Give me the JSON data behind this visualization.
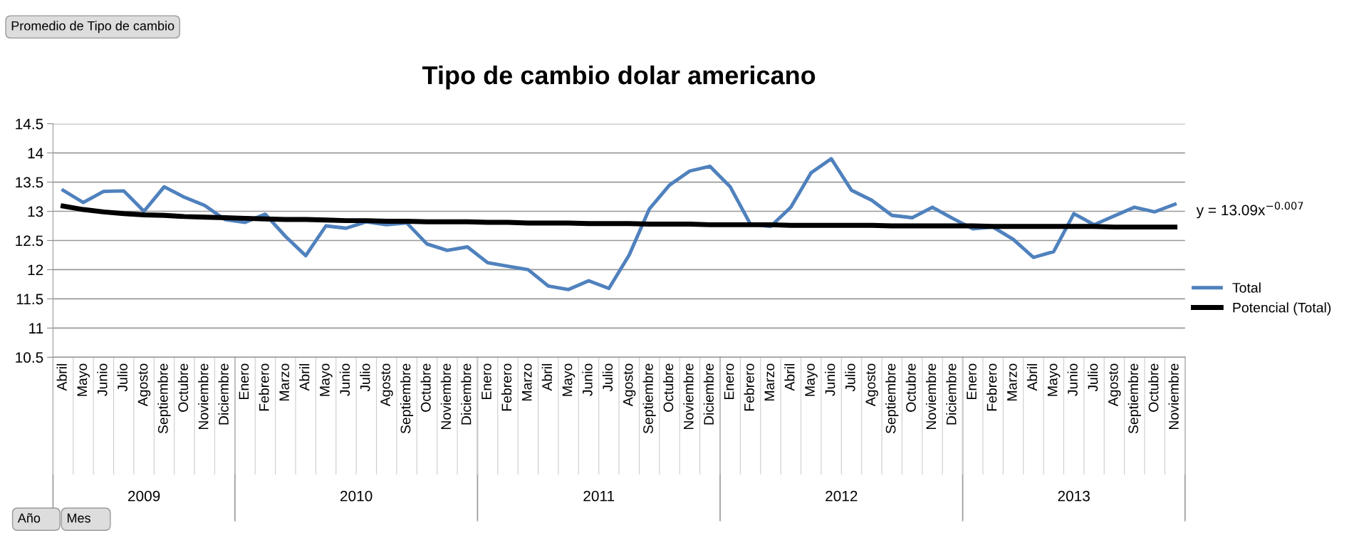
{
  "chart_data": {
    "type": "line",
    "title": "Tipo de cambio dolar americano",
    "categories": [
      "Abril",
      "Mayo",
      "Junio",
      "Julio",
      "Agosto",
      "Septiembre",
      "Octubre",
      "Noviembre",
      "Diciembre",
      "Enero",
      "Febrero",
      "Marzo",
      "Abril",
      "Mayo",
      "Junio",
      "Julio",
      "Agosto",
      "Septiembre",
      "Octubre",
      "Noviembre",
      "Diciembre",
      "Enero",
      "Febrero",
      "Marzo",
      "Abril",
      "Mayo",
      "Junio",
      "Julio",
      "Agosto",
      "Septiembre",
      "Octubre",
      "Noviembre",
      "Diciembre",
      "Enero",
      "Febrero",
      "Marzo",
      "Abril",
      "Mayo",
      "Junio",
      "Julio",
      "Agosto",
      "Septiembre",
      "Octubre",
      "Noviembre",
      "Diciembre",
      "Enero",
      "Febrero",
      "Marzo",
      "Abril",
      "Mayo",
      "Junio",
      "Julio",
      "Agosto",
      "Septiembre",
      "Octubre",
      "Noviembre"
    ],
    "series": [
      {
        "name": "Total",
        "color": "#4f81bd",
        "values": [
          13.36,
          13.15,
          13.34,
          13.35,
          13.0,
          13.42,
          13.24,
          13.1,
          12.86,
          12.81,
          12.95,
          12.57,
          12.24,
          12.75,
          12.71,
          12.82,
          12.77,
          12.8,
          12.44,
          12.33,
          12.39,
          12.12,
          12.06,
          12.0,
          11.72,
          11.66,
          11.81,
          11.68,
          12.25,
          13.04,
          13.45,
          13.69,
          13.77,
          13.42,
          12.78,
          12.74,
          13.07,
          13.66,
          13.9,
          13.36,
          13.19,
          12.93,
          12.89,
          13.07,
          12.88,
          12.7,
          12.73,
          12.52,
          12.21,
          12.31,
          12.96,
          12.77,
          12.92,
          13.07,
          12.99,
          13.12
        ]
      },
      {
        "name": "Potencial (Total)",
        "color": "#000000",
        "values": [
          13.09,
          13.03,
          12.99,
          12.96,
          12.94,
          12.93,
          12.91,
          12.9,
          12.89,
          12.88,
          12.87,
          12.86,
          12.86,
          12.85,
          12.84,
          12.84,
          12.83,
          12.83,
          12.82,
          12.82,
          12.82,
          12.81,
          12.81,
          12.8,
          12.8,
          12.8,
          12.79,
          12.79,
          12.79,
          12.78,
          12.78,
          12.78,
          12.77,
          12.77,
          12.77,
          12.77,
          12.76,
          12.76,
          12.76,
          12.76,
          12.76,
          12.75,
          12.75,
          12.75,
          12.75,
          12.75,
          12.74,
          12.74,
          12.74,
          12.74,
          12.74,
          12.74,
          12.73,
          12.73,
          12.73,
          12.73
        ]
      }
    ],
    "ylim": [
      10.5,
      14.5
    ],
    "yticks": [
      10.5,
      11,
      11.5,
      12,
      12.5,
      13,
      13.5,
      14,
      14.5
    ],
    "grid": "y",
    "legend": "right",
    "marker": "none",
    "line_style": "solid",
    "annotations": [
      "2009",
      "2010",
      "2011",
      "2012",
      "2013",
      "y = 13.09x$^{−0.007}$",
      "Promedio de Tipo de cambio",
      "Año",
      "Mes"
    ]
  }
}
